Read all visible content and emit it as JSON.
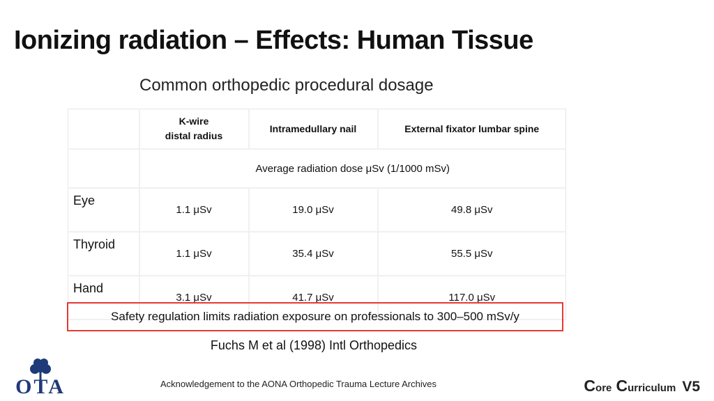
{
  "slide": {
    "title": "Ionizing radiation – Effects: Human Tissue",
    "subtitle": "Common orthopedic procedural dosage"
  },
  "table": {
    "headers": [
      {
        "line1": "K-wire",
        "line2": "distal radius"
      },
      {
        "line1": "Intramedullary nail"
      },
      {
        "line1": "External fixator lumbar spine"
      }
    ],
    "dose_caption": "Average radiation dose μSv (1/1000 mSv)",
    "rows": [
      {
        "label": "Eye",
        "values": [
          "1.1 μSv",
          "19.0 μSv",
          "49.8 μSv"
        ]
      },
      {
        "label": "Thyroid",
        "values": [
          "1.1 μSv",
          "35.4 μSv",
          "55.5 μSv"
        ]
      },
      {
        "label": "Hand",
        "values": [
          "3.1 μSv",
          "41.7 μSv",
          "117.0 μSv"
        ]
      }
    ]
  },
  "safety_note": "Safety regulation limits radiation exposure on professionals to 300–500 mSv/y",
  "citation": "Fuchs M et al (1998) Intl Orthopedics",
  "footer": {
    "acknowledgement": "Acknowledgement to the AONA Orthopedic Trauma Lecture Archives",
    "logo_text": "OTA",
    "brand": {
      "c1": "C",
      "c1_rest": "ore",
      "c2": "C",
      "c2_rest": "urriculum",
      "version": "V5"
    }
  },
  "colors": {
    "highlight_border": "#e53935",
    "logo_blue": "#1f3a78"
  }
}
